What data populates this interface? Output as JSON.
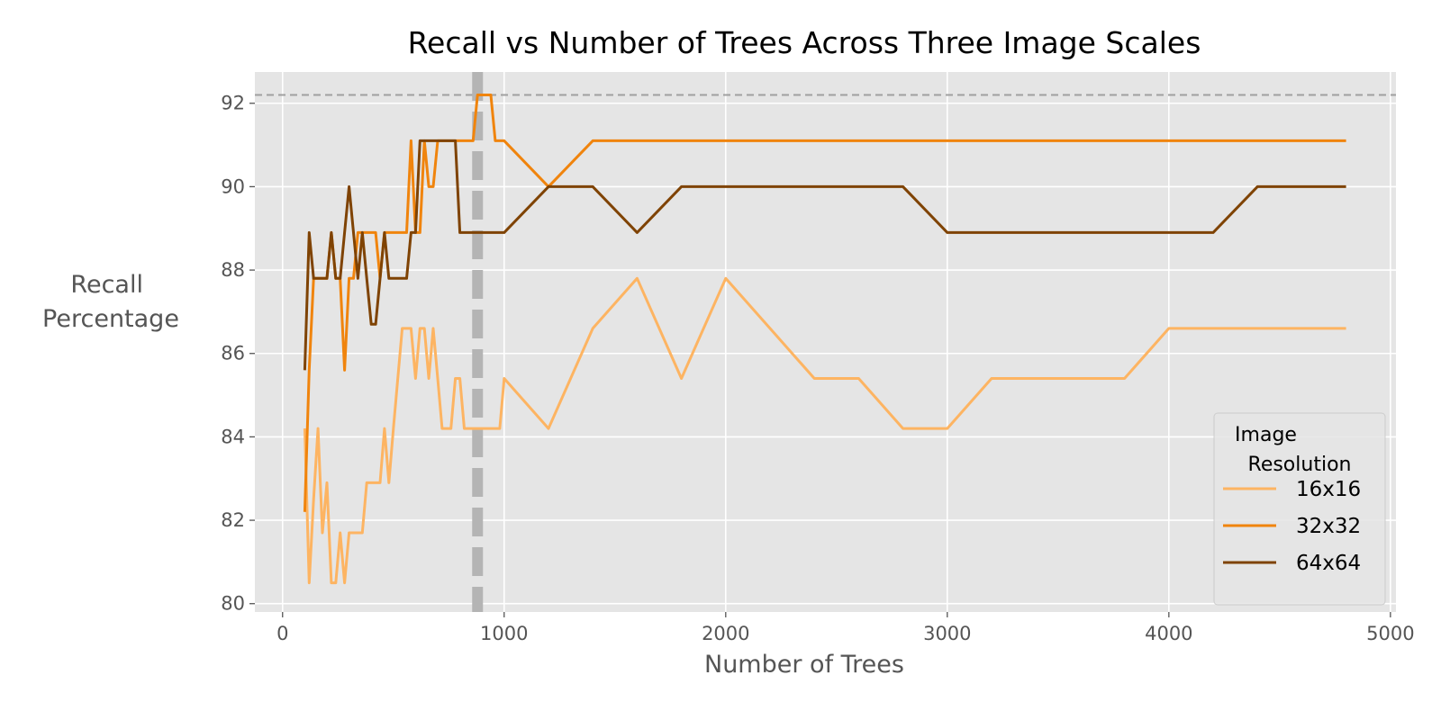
{
  "chart_data": {
    "type": "line",
    "title": "Recall vs Number of Trees Across Three Image Scales",
    "xlabel": "Number of Trees",
    "ylabel_lines": [
      "Recall",
      "Percentage"
    ],
    "xlim": [
      -125,
      5025
    ],
    "ylim": [
      79.8,
      92.75
    ],
    "xticks": [
      0,
      1000,
      2000,
      3000,
      4000,
      5000
    ],
    "yticks": [
      80,
      82,
      84,
      86,
      88,
      90,
      92
    ],
    "grid": true,
    "background_color": "#e5e5e5",
    "reference_lines": [
      {
        "orientation": "horizontal",
        "value": 92.2,
        "color": "#a0a0a0",
        "style": "dashed"
      },
      {
        "orientation": "vertical",
        "value": 880,
        "color": "#b4b4b4",
        "style": "dashed"
      }
    ],
    "legend": {
      "title_lines": [
        "Image",
        "Resolution"
      ],
      "placement": "lower-right"
    },
    "series": [
      {
        "name": "16x16",
        "color": "#fdb462",
        "x": [
          100,
          120,
          140,
          160,
          180,
          200,
          220,
          240,
          260,
          280,
          300,
          320,
          340,
          360,
          380,
          400,
          420,
          440,
          460,
          480,
          500,
          520,
          540,
          560,
          580,
          600,
          620,
          640,
          660,
          680,
          700,
          720,
          740,
          760,
          780,
          800,
          820,
          840,
          860,
          880,
          900,
          920,
          940,
          960,
          980,
          1000,
          1200,
          1400,
          1600,
          1800,
          2000,
          2200,
          2400,
          2600,
          2800,
          3000,
          3200,
          3400,
          3600,
          3800,
          4000,
          4200,
          4400,
          4600,
          4800
        ],
        "values": [
          84.2,
          80.5,
          82.5,
          84.2,
          81.7,
          82.9,
          80.5,
          80.5,
          81.7,
          80.5,
          81.7,
          81.7,
          81.7,
          81.7,
          82.9,
          82.9,
          82.9,
          82.9,
          84.2,
          82.9,
          84.2,
          85.4,
          86.6,
          86.6,
          86.6,
          85.4,
          86.6,
          86.6,
          85.4,
          86.6,
          85.4,
          84.2,
          84.2,
          84.2,
          85.4,
          85.4,
          84.2,
          84.2,
          84.2,
          84.2,
          84.2,
          84.2,
          84.2,
          84.2,
          84.2,
          85.4,
          84.2,
          86.6,
          87.8,
          85.4,
          87.8,
          86.6,
          85.4,
          85.4,
          84.2,
          84.2,
          85.4,
          85.4,
          85.4,
          85.4,
          86.6,
          86.6,
          86.6,
          86.6,
          86.6
        ]
      },
      {
        "name": "32x32",
        "color": "#f0840d",
        "x": [
          100,
          120,
          140,
          160,
          180,
          200,
          220,
          240,
          260,
          280,
          300,
          320,
          340,
          360,
          380,
          400,
          420,
          440,
          460,
          480,
          500,
          520,
          540,
          560,
          580,
          600,
          620,
          640,
          660,
          680,
          700,
          720,
          740,
          760,
          780,
          800,
          820,
          840,
          860,
          880,
          900,
          920,
          940,
          960,
          980,
          1000,
          1200,
          1400,
          1600,
          1800,
          2000,
          2200,
          2400,
          2600,
          2800,
          3000,
          3200,
          3400,
          3600,
          3800,
          4000,
          4200,
          4400,
          4600,
          4800
        ],
        "values": [
          82.2,
          85.6,
          87.8,
          87.8,
          87.8,
          87.8,
          88.9,
          87.8,
          87.8,
          85.6,
          87.8,
          87.8,
          88.9,
          88.9,
          88.9,
          88.9,
          88.9,
          87.8,
          88.9,
          88.9,
          88.9,
          88.9,
          88.9,
          88.9,
          91.1,
          88.9,
          88.9,
          91.1,
          90.0,
          90.0,
          91.1,
          91.1,
          91.1,
          91.1,
          91.1,
          91.1,
          91.1,
          91.1,
          91.1,
          92.2,
          92.2,
          92.2,
          92.2,
          91.1,
          91.1,
          91.1,
          90.0,
          91.1,
          91.1,
          91.1,
          91.1,
          91.1,
          91.1,
          91.1,
          91.1,
          91.1,
          91.1,
          91.1,
          91.1,
          91.1,
          91.1,
          91.1,
          91.1,
          91.1,
          91.1
        ]
      },
      {
        "name": "64x64",
        "color": "#7f4304",
        "x": [
          100,
          120,
          140,
          160,
          180,
          200,
          220,
          240,
          260,
          280,
          300,
          320,
          340,
          360,
          380,
          400,
          420,
          440,
          460,
          480,
          500,
          520,
          540,
          560,
          580,
          600,
          620,
          640,
          660,
          680,
          700,
          720,
          740,
          760,
          780,
          800,
          820,
          840,
          860,
          880,
          900,
          920,
          940,
          960,
          980,
          1000,
          1200,
          1400,
          1600,
          1800,
          2000,
          2200,
          2400,
          2600,
          2800,
          3000,
          3200,
          3400,
          3600,
          3800,
          4000,
          4200,
          4400,
          4600,
          4800
        ],
        "values": [
          85.6,
          88.9,
          87.8,
          87.8,
          87.8,
          87.8,
          88.9,
          87.8,
          87.8,
          88.9,
          90.0,
          88.9,
          87.8,
          88.9,
          87.8,
          86.7,
          86.7,
          87.8,
          88.9,
          87.8,
          87.8,
          87.8,
          87.8,
          87.8,
          88.9,
          88.9,
          91.1,
          91.1,
          91.1,
          91.1,
          91.1,
          91.1,
          91.1,
          91.1,
          91.1,
          88.9,
          88.9,
          88.9,
          88.9,
          88.9,
          88.9,
          88.9,
          88.9,
          88.9,
          88.9,
          88.9,
          90.0,
          90.0,
          88.9,
          90.0,
          90.0,
          90.0,
          90.0,
          90.0,
          90.0,
          88.9,
          88.9,
          88.9,
          88.9,
          88.9,
          88.9,
          88.9,
          90.0,
          90.0,
          90.0
        ]
      }
    ]
  }
}
